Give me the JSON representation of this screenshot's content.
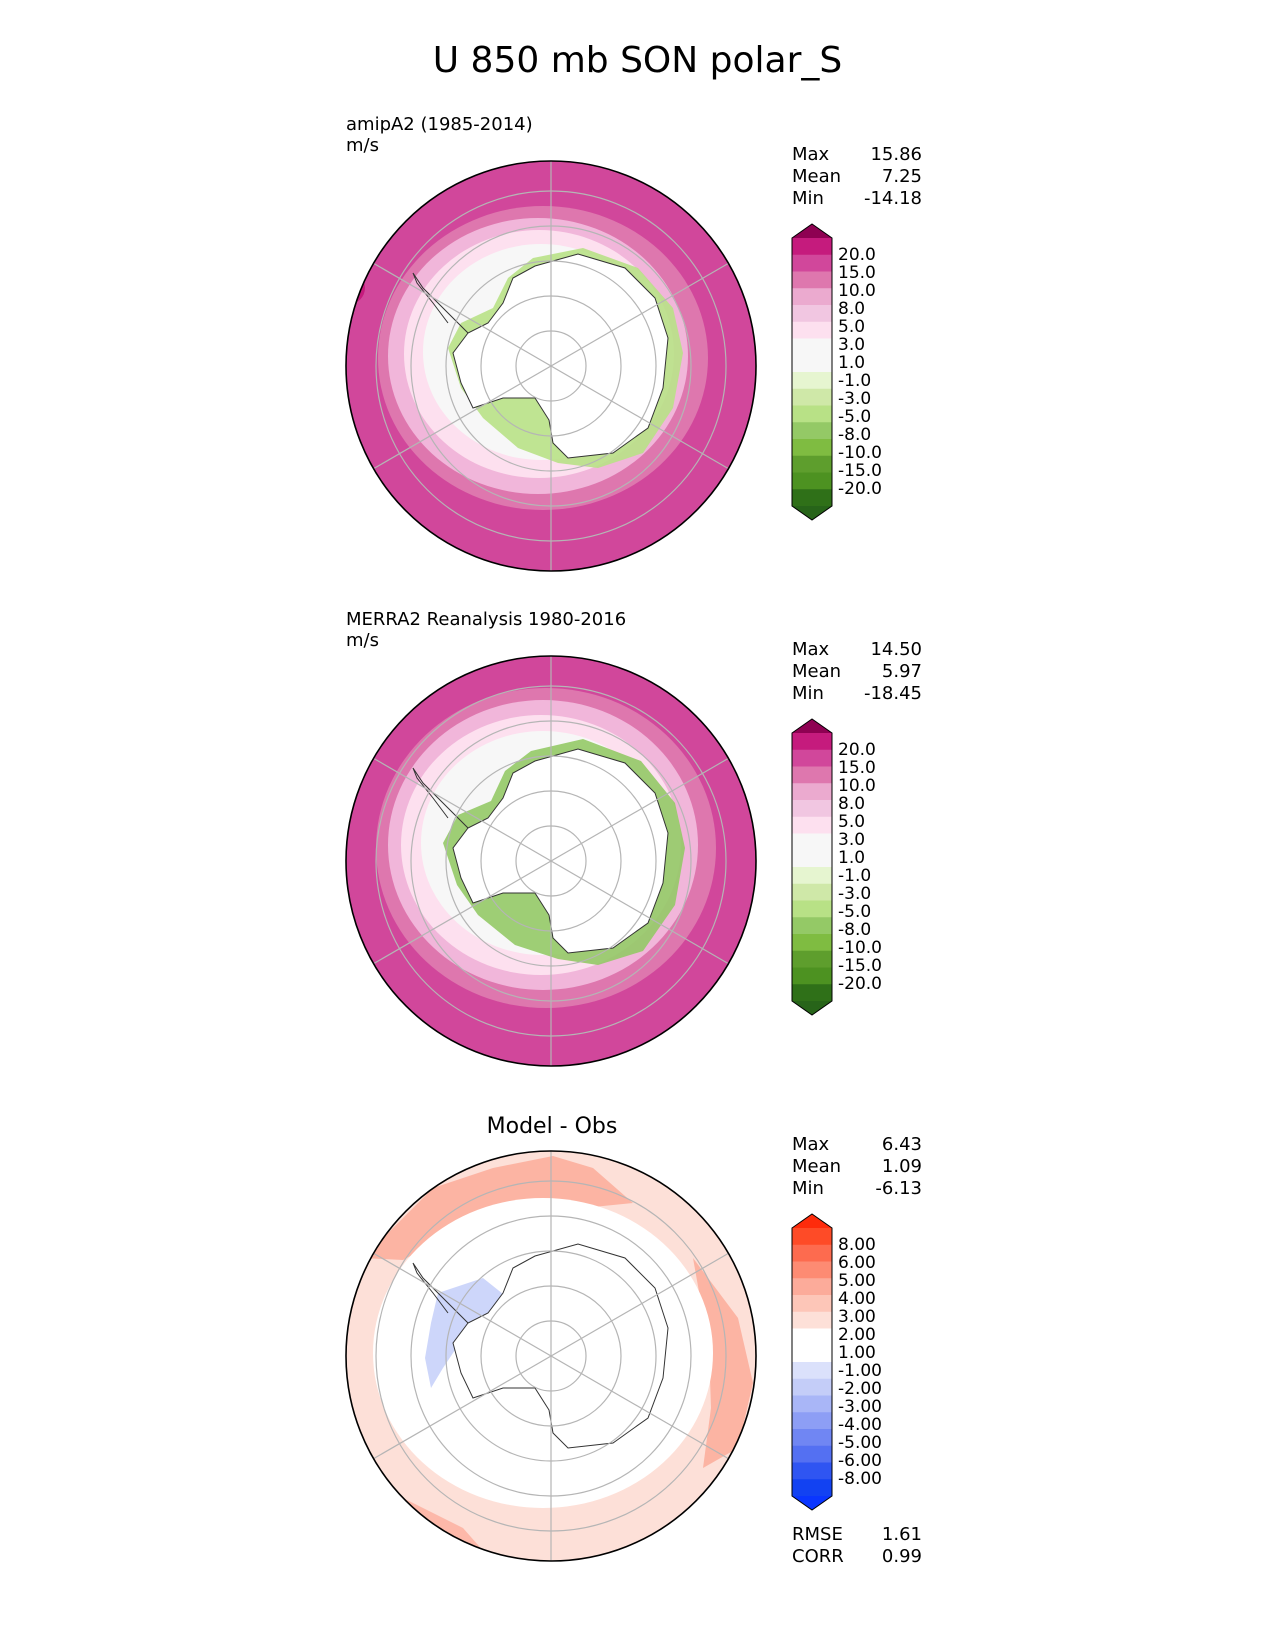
{
  "title": "U 850 mb SON polar_S",
  "panels": [
    {
      "id": "test",
      "title_lines": [
        "amipA2 (1985-2014)",
        "m/s"
      ],
      "stats": [
        {
          "label": "Max",
          "value": "15.86"
        },
        {
          "label": "Mean",
          "value": "7.25"
        },
        {
          "label": "Min",
          "value": "-14.18"
        }
      ],
      "colorbar_labels": [
        "20.0",
        "15.0",
        "10.0",
        "8.0",
        "5.0",
        "3.0",
        "1.0",
        "-1.0",
        "-3.0",
        "-5.0",
        "-8.0",
        "-10.0",
        "-15.0",
        "-20.0"
      ],
      "colors": {
        "outer": "#d1479b",
        "ring2": "#de77ae",
        "ring3": "#f1b6da",
        "ring4": "#fde0ef",
        "ice": "#f7f7f7",
        "green": "#7fbc41"
      }
    },
    {
      "id": "reference",
      "title_lines": [
        "MERRA2 Reanalysis 1980-2016",
        "m/s"
      ],
      "stats": [
        {
          "label": "Max",
          "value": "14.50"
        },
        {
          "label": "Mean",
          "value": "5.97"
        },
        {
          "label": "Min",
          "value": "-18.45"
        }
      ],
      "colorbar_labels": [
        "20.0",
        "15.0",
        "10.0",
        "8.0",
        "5.0",
        "3.0",
        "1.0",
        "-1.0",
        "-3.0",
        "-5.0",
        "-8.0",
        "-10.0",
        "-15.0",
        "-20.0"
      ],
      "colors": {
        "outer": "#d1479b",
        "ring2": "#de77ae",
        "ring3": "#f1b6da",
        "ring4": "#fde0ef",
        "ice": "#f7f7f7",
        "green": "#4d9221"
      }
    },
    {
      "id": "diff",
      "title": "Model - Obs",
      "stats": [
        {
          "label": "Max",
          "value": "6.43"
        },
        {
          "label": "Mean",
          "value": "1.09"
        },
        {
          "label": "Min",
          "value": "-6.13"
        }
      ],
      "colorbar_labels": [
        "8.00",
        "6.00",
        "5.00",
        "4.00",
        "3.00",
        "2.00",
        "1.00",
        "-1.00",
        "-2.00",
        "-3.00",
        "-4.00",
        "-5.00",
        "-6.00",
        "-8.00"
      ],
      "metrics": [
        {
          "label": "RMSE",
          "value": "1.61"
        },
        {
          "label": "CORR",
          "value": "0.99"
        }
      ],
      "colors": {
        "outer": "#fdd3c7",
        "warm": "#fcab9a",
        "blue": "#c8d2fa"
      }
    }
  ],
  "colorbar_colors": {
    "field": [
      "#8e0152",
      "#c51b7d",
      "#d1479b",
      "#de77ae",
      "#ebaacf",
      "#f1c6e1",
      "#fde0ef",
      "#f7f7f7",
      "#f7f7f7",
      "#e6f5d0",
      "#cfe8a8",
      "#b8e186",
      "#94c966",
      "#7fbc41",
      "#5e9e2d",
      "#4d9221",
      "#2f7018",
      "#276419"
    ],
    "diff": [
      "#fe2b0b",
      "#fe4b27",
      "#fd6b4f",
      "#fd8b73",
      "#fcab9a",
      "#fdc6b8",
      "#fde0d8",
      "#ffffff",
      "#ffffff",
      "#dbe1fb",
      "#c4cdf8",
      "#a9b6f7",
      "#8d9ef5",
      "#7086f3",
      "#5470f2",
      "#2f55f2",
      "#1242f2",
      "#0a36ff"
    ]
  }
}
